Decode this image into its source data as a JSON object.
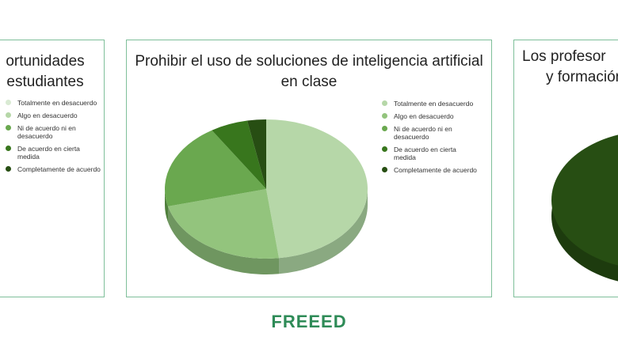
{
  "chart_data": {
    "type": "pie",
    "title": "Prohibir el uso de soluciones de inteligencia artificial en clase",
    "categories": [
      "Totalmente en desacuerdo",
      "Algo en desacuerdo",
      "Ni de acuerdo ni en desacuerdo",
      "De acuerdo en cierta medida",
      "Completamente de acuerdo"
    ],
    "values": [
      48,
      23,
      20,
      6,
      3
    ],
    "colors": [
      "#b6d7a8",
      "#93c47d",
      "#6aa84f",
      "#38761d",
      "#274e13"
    ],
    "side_colors": [
      "#8aa981",
      "#6f9660",
      "#50803c",
      "#2a5916",
      "#1d3b0e"
    ]
  },
  "left_card": {
    "title_lines": [
      "ortunidades",
      "estudiantes"
    ],
    "legend": [
      "Totalmente en desacuerdo",
      "Algo en desacuerdo",
      "Ni de acuerdo ni en desacuerdo",
      "De acuerdo en cierta medida",
      "Completamente de acuerdo"
    ]
  },
  "right_card": {
    "title_lines": [
      "Los profesor",
      "y formación"
    ]
  },
  "logo": "FREEED"
}
